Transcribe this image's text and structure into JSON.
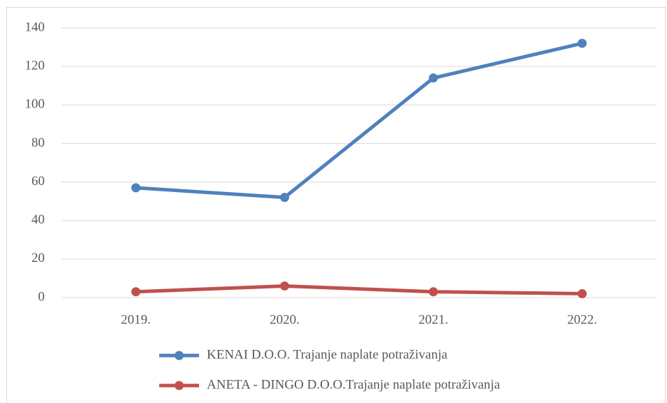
{
  "chart_data": {
    "type": "line",
    "categories": [
      "2019.",
      "2020.",
      "2021.",
      "2022."
    ],
    "series": [
      {
        "name": "KENAI D.O.O. Trajanje naplate potraživanja",
        "color": "#4f81bd",
        "values": [
          57,
          52,
          114,
          132
        ]
      },
      {
        "name": "ANETA - DINGO D.O.O.Trajanje naplate potraživanja",
        "color": "#c0504d",
        "values": [
          3,
          6,
          3,
          2
        ]
      }
    ],
    "ylim": [
      0,
      140
    ],
    "yticks": [
      0,
      20,
      40,
      60,
      80,
      100,
      120,
      140
    ],
    "grid": true,
    "legend": "bottom"
  }
}
